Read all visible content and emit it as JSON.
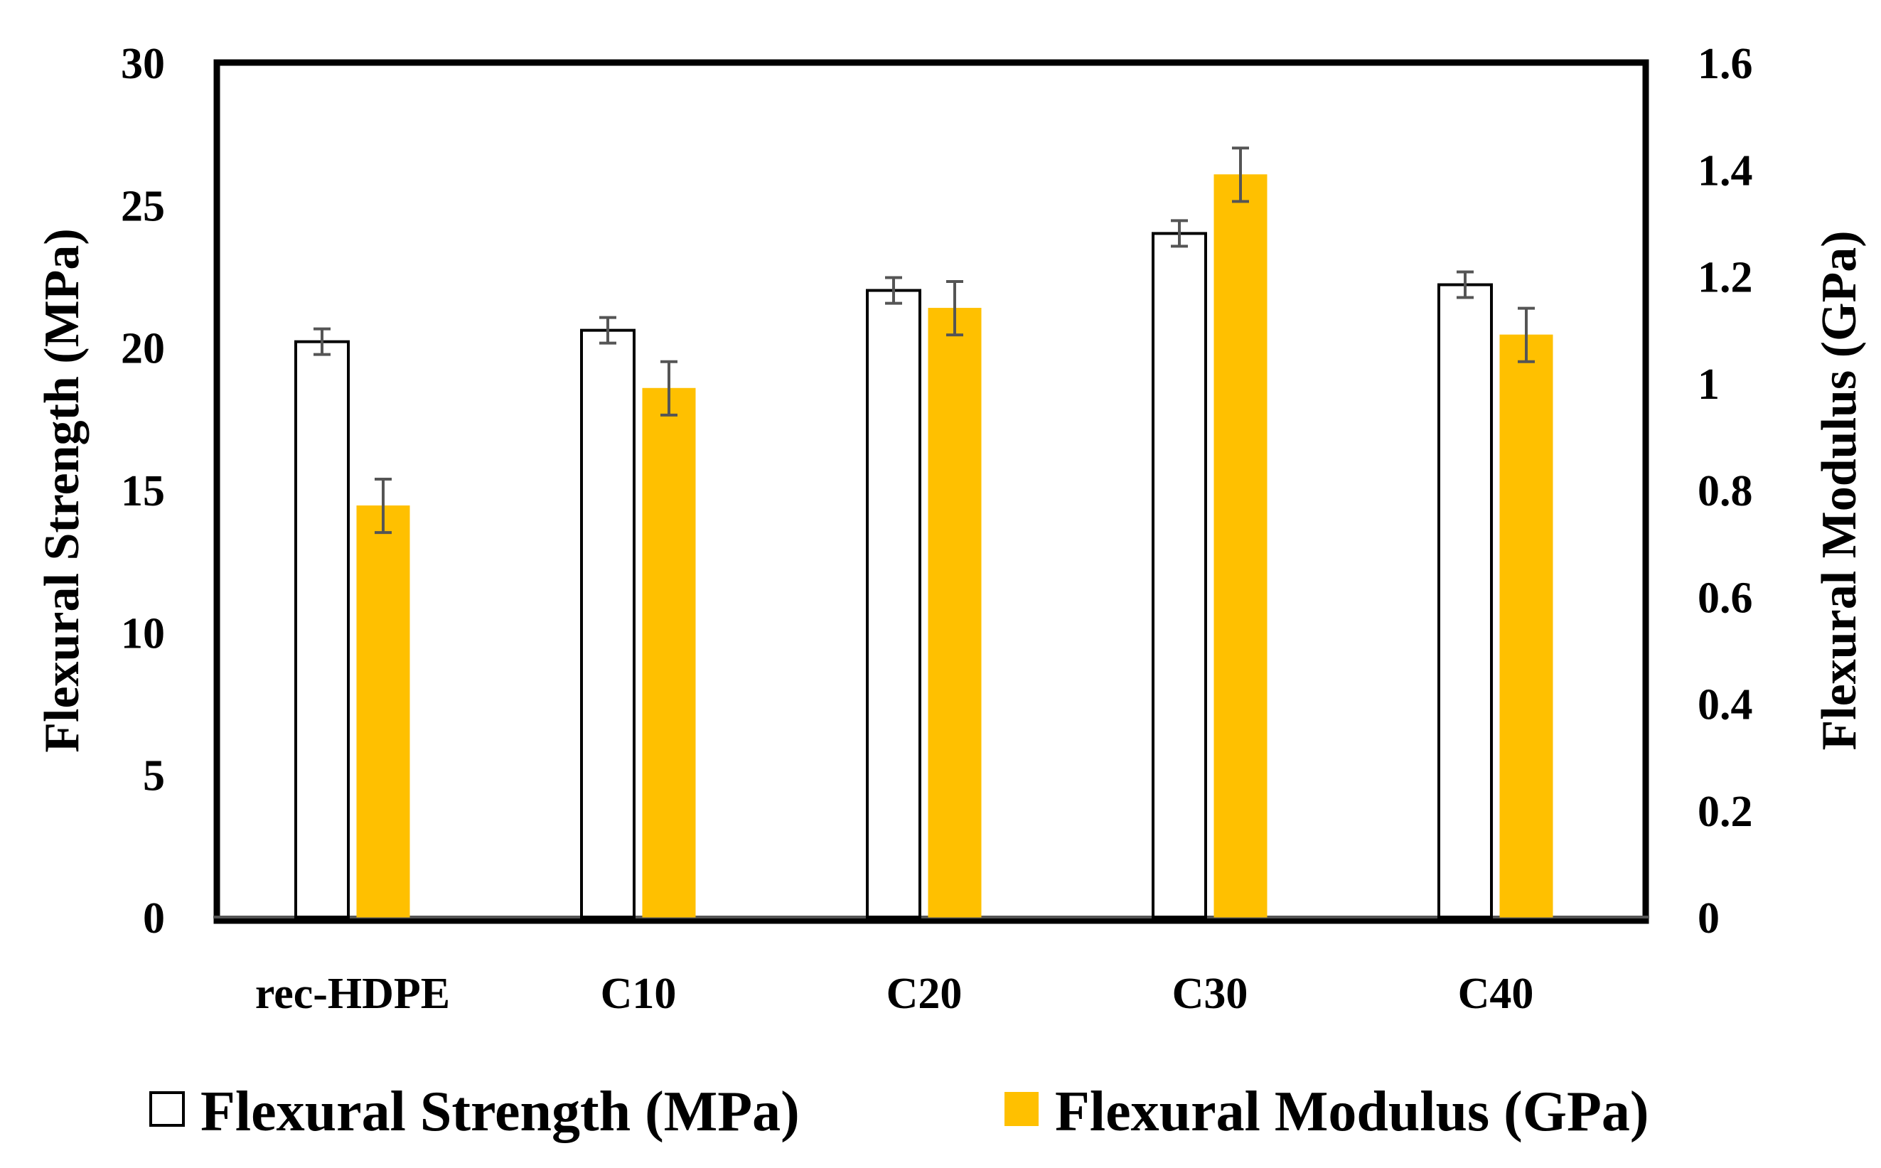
{
  "chart_data": {
    "type": "bar",
    "categories": [
      "rec-HDPE",
      "C10",
      "C20",
      "C30",
      "C40"
    ],
    "series": [
      {
        "name": "Flexural Strength (MPa)",
        "axis": "left",
        "fill": "#ffffff",
        "stroke": "#000000",
        "values": [
          20.2,
          20.6,
          22.0,
          24.0,
          22.2
        ],
        "errors": [
          0.45,
          0.45,
          0.45,
          0.45,
          0.45
        ]
      },
      {
        "name": "Flexural Modulus (GPa)",
        "axis": "right",
        "fill": "#FFC000",
        "stroke": "#FFC000",
        "values": [
          0.77,
          0.99,
          1.14,
          1.39,
          1.09
        ],
        "errors": [
          0.05,
          0.05,
          0.05,
          0.05,
          0.05
        ]
      }
    ],
    "ylabel_left": "Flexural Strength (MPa)",
    "ylabel_right": "Flexural Modulus (GPa)",
    "ylim_left": [
      0,
      30
    ],
    "ylim_right": [
      0,
      1.6
    ],
    "yticks_left": [
      "0",
      "5",
      "10",
      "15",
      "20",
      "25",
      "30"
    ],
    "yticks_right": [
      "0",
      "0.2",
      "0.4",
      "0.6",
      "0.8",
      "1",
      "1.2",
      "1.4",
      "1.6"
    ],
    "legend_position": "bottom",
    "grid": false,
    "error_bar_color": "#555555"
  }
}
